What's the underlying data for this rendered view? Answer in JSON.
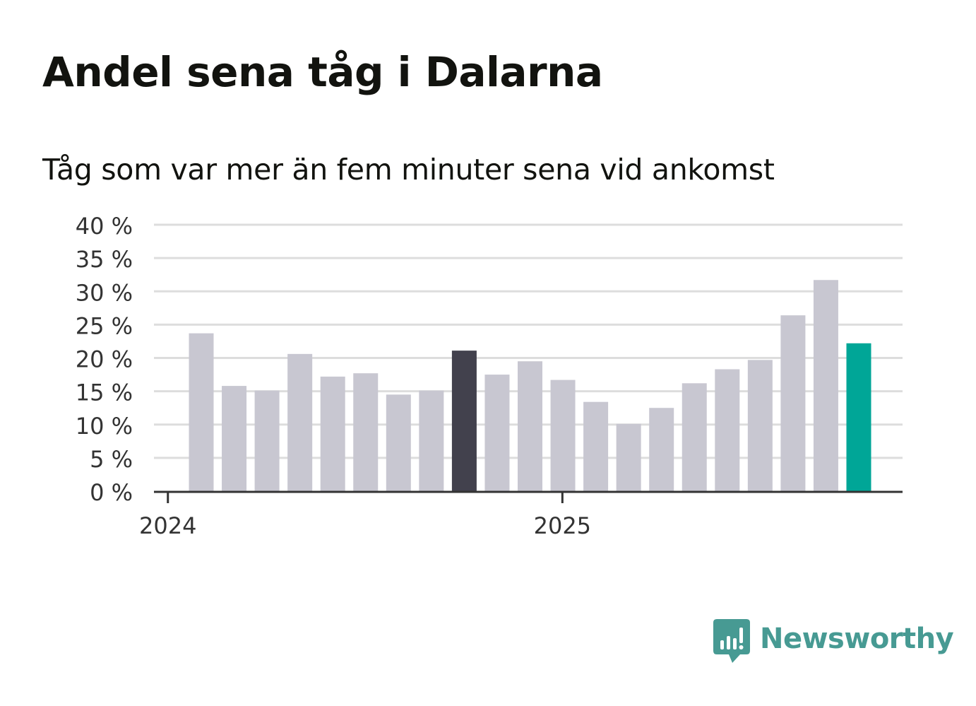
{
  "title": "Andel sena tåg i Dalarna",
  "subtitle": "Tåg som var mer än fem minuter sena vid ankomst",
  "brand": {
    "name": "Newsworthy",
    "icon": "newsworthy-bar-chart-speech-bubble-icon",
    "color": "#479a93"
  },
  "colors": {
    "bar_default": "#c8c7d1",
    "bar_highlight_previous_year": "#42414d",
    "bar_highlight_latest": "#00a697",
    "grid": "#dddddd",
    "axis": "#333333"
  },
  "chart_data": {
    "type": "bar",
    "title": "Andel sena tåg i Dalarna",
    "subtitle": "Tåg som var mer än fem minuter sena vid ankomst",
    "xlabel": "",
    "ylabel": "",
    "x_tick_labels": [
      "2024",
      "2025"
    ],
    "y_tick_labels": [
      "0 %",
      "5 %",
      "10 %",
      "15 %",
      "20 %",
      "25 %",
      "30 %",
      "35 %",
      "40 %"
    ],
    "ylim": [
      0,
      40
    ],
    "grid": true,
    "legend": "none",
    "categories": [
      "2024-01",
      "2024-02",
      "2024-03",
      "2024-04",
      "2024-05",
      "2024-06",
      "2024-07",
      "2024-08",
      "2024-09",
      "2024-10",
      "2024-11",
      "2024-12",
      "2025-01",
      "2025-02",
      "2025-03",
      "2025-04",
      "2025-05",
      "2025-06",
      "2025-07",
      "2025-08",
      "2025-09"
    ],
    "values": [
      23.7,
      15.8,
      15.1,
      20.6,
      17.2,
      17.7,
      14.5,
      15.1,
      21.1,
      17.5,
      19.5,
      16.7,
      13.4,
      10.1,
      12.5,
      16.2,
      18.3,
      19.7,
      26.4,
      31.7,
      22.2
    ],
    "bar_colors": [
      "#c8c7d1",
      "#c8c7d1",
      "#c8c7d1",
      "#c8c7d1",
      "#c8c7d1",
      "#c8c7d1",
      "#c8c7d1",
      "#c8c7d1",
      "#42414d",
      "#c8c7d1",
      "#c8c7d1",
      "#c8c7d1",
      "#c8c7d1",
      "#c8c7d1",
      "#c8c7d1",
      "#c8c7d1",
      "#c8c7d1",
      "#c8c7d1",
      "#c8c7d1",
      "#c8c7d1",
      "#00a697"
    ]
  }
}
